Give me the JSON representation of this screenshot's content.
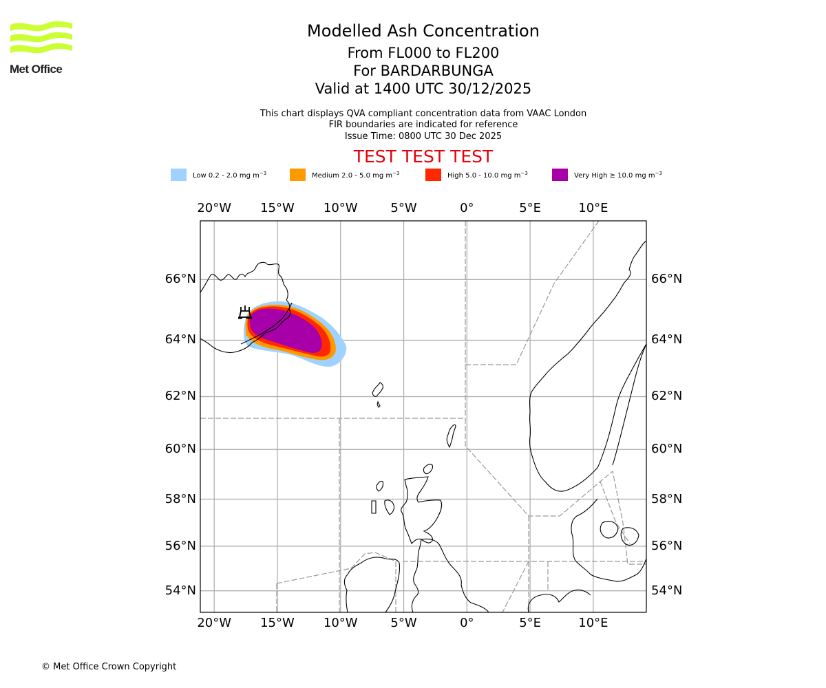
{
  "branding": {
    "logo_text": "Met Office",
    "logo_color": "#ccff33"
  },
  "header": {
    "title": "Modelled Ash Concentration",
    "flight_levels": "From FL000 to FL200",
    "volcano": "For BARDARBUNGA",
    "valid_time": "Valid at 1400 UTC 30/12/2025",
    "description_line1": "This chart displays QVA compliant concentration data from VAAC London",
    "description_line2": "FIR boundaries are indicated for reference",
    "issue_time": "Issue Time: 0800 UTC 30 Dec 2025",
    "test_banner": "TEST TEST TEST",
    "test_color": "#e8000b"
  },
  "legend": [
    {
      "label": "Low 0.2 - 2.0 mg m",
      "exp": "−3",
      "color": "#a0d2ff"
    },
    {
      "label": "Medium 2.0 - 5.0 mg m",
      "exp": "−3",
      "color": "#ff9900"
    },
    {
      "label": "High 5.0 - 10.0 mg m",
      "exp": "−3",
      "color": "#ff2800"
    },
    {
      "label": "Very High  ≥  10.0 mg m",
      "exp": "−3",
      "color": "#a800a8"
    }
  ],
  "map": {
    "lon_ticks": [
      "20°W",
      "15°W",
      "10°W",
      "5°W",
      "0°",
      "5°E",
      "10°E"
    ],
    "lon_values": [
      -20,
      -15,
      -10,
      -5,
      0,
      5,
      10
    ],
    "lat_ticks": [
      "66°N",
      "64°N",
      "62°N",
      "60°N",
      "58°N",
      "56°N",
      "54°N"
    ],
    "lat_values": [
      66,
      64,
      62,
      60,
      58,
      56,
      54
    ],
    "extent": {
      "lon_min": -21.1,
      "lon_max": 14.2,
      "lat_min": 53,
      "lat_max": 67.8
    },
    "volcano_marker": {
      "name": "volcano-icon",
      "lon": -17.5,
      "lat": 64.6
    },
    "grid_color": "#aaaaaa",
    "fir_color": "#999999"
  },
  "footer": {
    "copyright": "© Met Office Crown Copyright"
  }
}
